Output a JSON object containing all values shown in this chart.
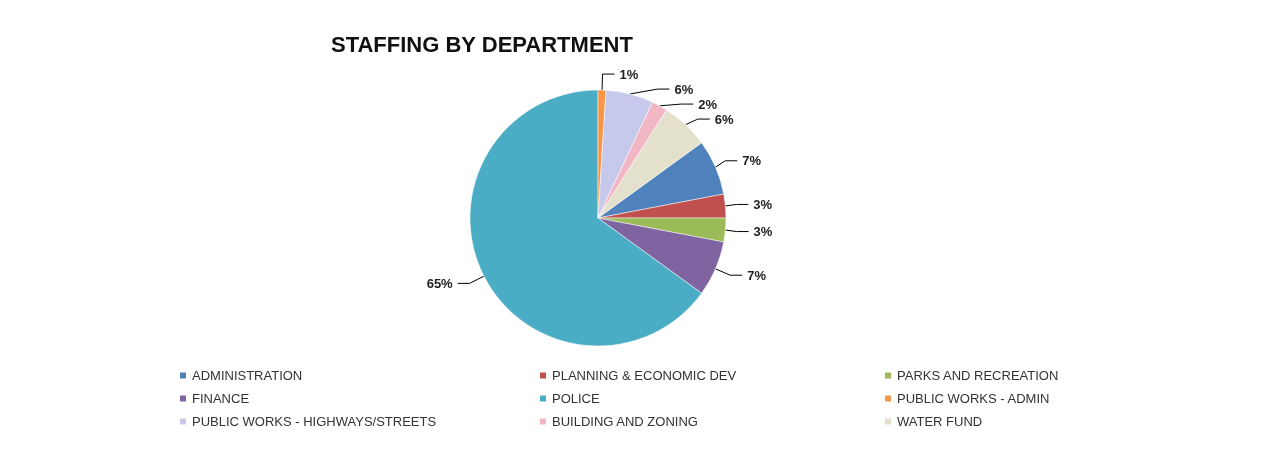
{
  "chart_data": {
    "type": "pie",
    "title": "STAFFING BY DEPARTMENT",
    "categories": [
      "ADMINISTRATION",
      "PLANNING & ECONOMIC DEV",
      "PARKS AND RECREATION",
      "FINANCE",
      "POLICE",
      "PUBLIC WORKS - ADMIN",
      "PUBLIC WORKS - HIGHWAYS/STREETS",
      "BUILDING AND ZONING",
      "WATER FUND"
    ],
    "values": [
      7,
      3,
      3,
      7,
      65,
      1,
      6,
      2,
      6
    ],
    "value_labels": [
      "7%",
      "3%",
      "3%",
      "7%",
      "65%",
      "1%",
      "6%",
      "2%",
      "6%"
    ],
    "colors": [
      "#4f81bd",
      "#c0504d",
      "#9bbb59",
      "#8064a2",
      "#4bacc6",
      "#f79646",
      "#c6c9ec",
      "#f2b7c4",
      "#e3e1cc"
    ],
    "legend": "bottom"
  }
}
